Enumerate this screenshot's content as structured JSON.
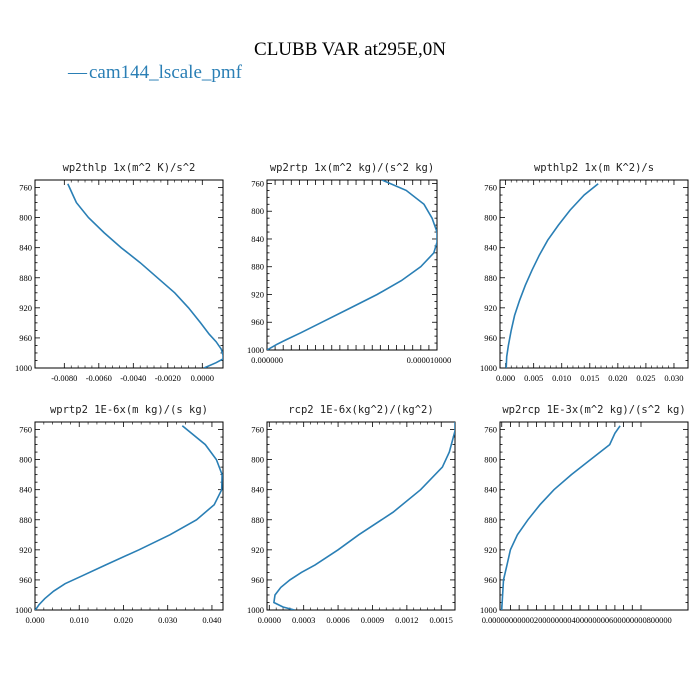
{
  "figure": {
    "title": "CLUBB VAR at295E,0N",
    "legend": {
      "line": "—",
      "label": "cam144_lscale_pmf",
      "color": "#2a7fb5"
    }
  },
  "chart_data": [
    {
      "type": "line",
      "title": "wp2thlp  1x(m^2 K)/s^2",
      "xlim": [
        -0.0097,
        0.0012
      ],
      "ylim": [
        750,
        1000
      ],
      "y_inverted": true,
      "xticks": [
        -0.008,
        -0.006,
        -0.004,
        -0.002,
        0.0
      ],
      "xtick_labels": [
        "-0.0080",
        "-0.0060",
        "-0.0040",
        "-0.0020",
        "0.0000"
      ],
      "yticks": [
        760,
        800,
        840,
        880,
        920,
        960,
        1000
      ],
      "series": [
        {
          "y": [
            755,
            760,
            770,
            780,
            800,
            820,
            840,
            860,
            880,
            900,
            920,
            940,
            955,
            965,
            975,
            983,
            988,
            993,
            1000
          ],
          "x": [
            -0.0078,
            -0.0077,
            -0.0075,
            -0.0073,
            -0.0066,
            -0.0057,
            -0.0047,
            -0.0036,
            -0.0026,
            -0.0016,
            -0.0008,
            -0.0001,
            0.0004,
            0.0008,
            0.0011,
            0.0012,
            0.0012,
            0.0008,
            0.0001
          ]
        }
      ]
    },
    {
      "type": "line",
      "title": "wp2rtp  1x(m^2 kg)/(s^2 kg)",
      "xlim": [
        0.0,
        1.05e-05
      ],
      "ylim": [
        755,
        1000
      ],
      "y_inverted": true,
      "xticks": [
        0.0,
        5e-07,
        1e-06,
        1.5e-06,
        2e-06,
        2.5e-06,
        3e-06,
        3.5e-06,
        4e-06,
        4.5e-06,
        5e-06,
        5.5e-06,
        6e-06,
        6.5e-06,
        7e-06,
        7.5e-06,
        8e-06,
        8.5e-06,
        9e-06,
        9.5e-06,
        1e-05
      ],
      "xtick_labels": [
        "0.000000",
        "",
        "",
        "",
        "",
        "",
        "",
        "",
        "",
        "",
        "",
        "",
        "",
        "",
        "",
        "",
        "",
        "",
        "",
        "",
        "0.000010000"
      ],
      "yticks": [
        760,
        800,
        840,
        880,
        920,
        960,
        1000
      ],
      "series": [
        {
          "y": [
            755,
            770,
            790,
            810,
            830,
            845,
            860,
            880,
            900,
            920,
            940,
            960,
            975,
            985,
            992,
            1000
          ],
          "x": [
            7.1e-06,
            8.6e-06,
            9.7e-06,
            1.02e-05,
            1.05e-05,
            1.05e-05,
            1.03e-05,
            9.5e-06,
            8.3e-06,
            6.8e-06,
            5.1e-06,
            3.4e-06,
            2.1e-06,
            1.2e-06,
            6e-07,
            0.0
          ]
        }
      ]
    },
    {
      "type": "line",
      "title": "wpthlp2  1x(m K^2)/s",
      "xlim": [
        -0.001,
        0.0325
      ],
      "ylim": [
        750,
        1000
      ],
      "y_inverted": true,
      "xticks": [
        0.0,
        0.005,
        0.01,
        0.015,
        0.02,
        0.025,
        0.03
      ],
      "xtick_labels": [
        "0.000",
        "0.005",
        "0.010",
        "0.015",
        "0.020",
        "0.025",
        "0.030"
      ],
      "yticks": [
        760,
        800,
        840,
        880,
        920,
        960,
        1000
      ],
      "series": [
        {
          "y": [
            755,
            770,
            790,
            810,
            830,
            850,
            870,
            890,
            910,
            930,
            950,
            970,
            985,
            1000
          ],
          "x": [
            0.0165,
            0.014,
            0.0115,
            0.0094,
            0.0075,
            0.006,
            0.0047,
            0.0035,
            0.0025,
            0.0016,
            0.001,
            0.0005,
            0.0002,
            0.0001
          ]
        }
      ]
    },
    {
      "type": "line",
      "title": "wprtp2  1E-6x(m kg)/(s kg)",
      "xlim": [
        0.0,
        0.0425
      ],
      "ylim": [
        750,
        1000
      ],
      "y_inverted": true,
      "xticks": [
        0.0,
        0.01,
        0.02,
        0.03,
        0.04
      ],
      "xtick_labels": [
        "0.000",
        "0.010",
        "0.020",
        "0.030",
        "0.040"
      ],
      "yticks": [
        760,
        800,
        840,
        880,
        920,
        960,
        1000
      ],
      "series": [
        {
          "y": [
            755,
            780,
            800,
            820,
            840,
            860,
            880,
            900,
            920,
            940,
            955,
            965,
            975,
            985,
            993,
            1000
          ],
          "x": [
            0.0333,
            0.0385,
            0.041,
            0.0423,
            0.0422,
            0.0405,
            0.0365,
            0.0305,
            0.0235,
            0.016,
            0.0105,
            0.0068,
            0.0042,
            0.0022,
            0.0009,
            0.0001
          ]
        }
      ]
    },
    {
      "type": "line",
      "title": "rcp2  1E-6x(kg^2)/(kg^2)",
      "xlim": [
        -2e-05,
        0.00162
      ],
      "ylim": [
        750,
        1000
      ],
      "y_inverted": true,
      "xticks": [
        0.0,
        0.0003,
        0.0006,
        0.0009,
        0.0012,
        0.0015
      ],
      "xtick_labels": [
        "0.0000",
        "0.0003",
        "0.0006",
        "0.0009",
        "0.0012",
        "0.0015"
      ],
      "yticks": [
        760,
        800,
        840,
        880,
        920,
        960,
        1000
      ],
      "series": [
        {
          "y": [
            750,
            762,
            790,
            810,
            840,
            870,
            900,
            920,
            940,
            950,
            960,
            970,
            980,
            990,
            996,
            1000
          ],
          "x": [
            0.00162,
            0.00162,
            0.00157,
            0.00151,
            0.00132,
            0.00108,
            0.00078,
            0.0006,
            0.0004,
            0.00028,
            0.00018,
            0.0001,
            5e-05,
            4e-05,
            0.00012,
            0.00022
          ]
        }
      ]
    },
    {
      "type": "line",
      "title": "wp2rcp  1E-3x(m^2 kg)/(s^2 kg)",
      "xlim": [
        -1e-07,
        1.07e-05
      ],
      "ylim": [
        750,
        1000
      ],
      "y_inverted": true,
      "xticks": [
        0.0,
        5e-07,
        1e-06,
        1.5e-06,
        2e-06,
        2.5e-06,
        3e-06,
        3.5e-06,
        4e-06,
        4.5e-06,
        5e-06,
        5.5e-06,
        6e-06,
        6.5e-06,
        7e-06,
        7.5e-06,
        8e-06
      ],
      "xtick_labels": [
        "0.00000000000200000000400000000600000000800000",
        "",
        "",
        "",
        "",
        "",
        "",
        "",
        "",
        "",
        "",
        "",
        "",
        "",
        "",
        "",
        ""
      ],
      "yticks": [
        760,
        800,
        840,
        880,
        920,
        960,
        1000
      ],
      "series": [
        {
          "y": [
            755,
            765,
            780,
            800,
            820,
            840,
            860,
            880,
            900,
            920,
            940,
            960,
            980,
            1000
          ],
          "x": [
            6.8e-06,
            6.5e-06,
            6.2e-06,
            5.1e-06,
            4e-06,
            3e-06,
            2.2e-06,
            1.5e-06,
            9e-07,
            5e-07,
            3e-07,
            1e-07,
            5e-08,
            0.0
          ]
        }
      ]
    }
  ]
}
